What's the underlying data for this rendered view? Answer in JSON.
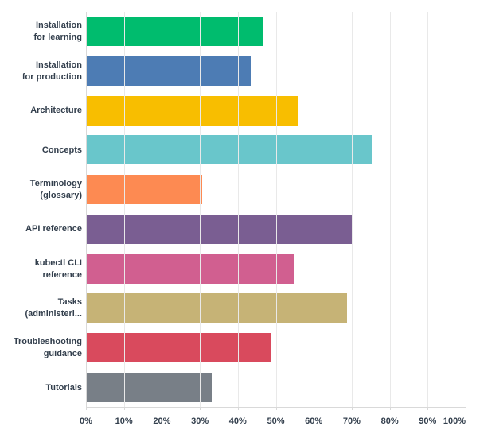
{
  "chart_data": {
    "type": "bar",
    "orientation": "horizontal",
    "title": "",
    "xlabel": "",
    "ylabel": "",
    "xlim": [
      0,
      100
    ],
    "grid": "vertical",
    "legend": "none",
    "x_tick_labels": [
      "0%",
      "10%",
      "20%",
      "30%",
      "40%",
      "50%",
      "60%",
      "70%",
      "80%",
      "90%",
      "100%"
    ],
    "x_tick_values": [
      0,
      10,
      20,
      30,
      40,
      50,
      60,
      70,
      80,
      90,
      100
    ],
    "categories": [
      "Installation\nfor learning",
      "Installation\nfor production",
      "Architecture",
      "Concepts",
      "Terminology\n(glossary)",
      "API reference",
      "kubectl CLI\nreference",
      "Tasks\n(administeri...",
      "Troubleshooting\nguidance",
      "Tutorials"
    ],
    "values": [
      46.5,
      43.5,
      55.5,
      75,
      30.5,
      70,
      54.5,
      68.5,
      48.5,
      33
    ],
    "unit": "%",
    "bar_colors": [
      "#00bc6e",
      "#4d7cb4",
      "#f8be00",
      "#69c6cb",
      "#fd8a52",
      "#7a5e92",
      "#d15f90",
      "#c6b376",
      "#d94a5d",
      "#787f87"
    ]
  },
  "styles": {
    "background_color": "#ffffff",
    "text_color": "#333f4d",
    "gridline_color": "#e9e9e9",
    "axis_color": "#d9d9d9"
  }
}
